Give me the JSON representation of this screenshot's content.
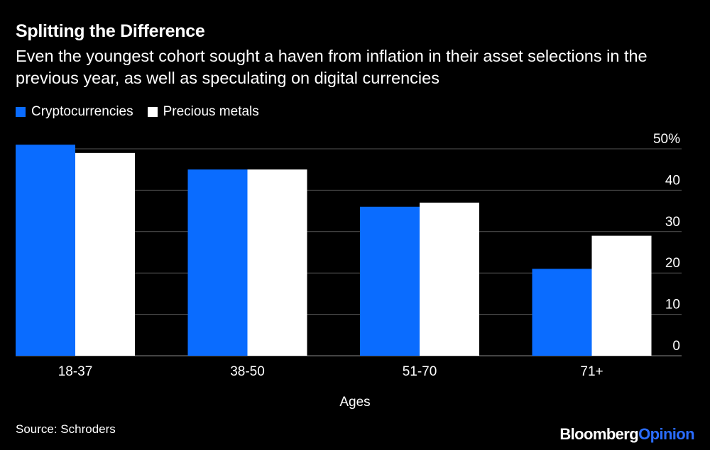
{
  "title": "Splitting the Difference",
  "subtitle": "Even the youngest cohort sought a haven from inflation in their asset selections in the previous year, as well as speculating on digital currencies",
  "source": "Source: Schroders",
  "brand": {
    "main": "Bloomberg",
    "accent": "Opinion"
  },
  "colors": {
    "crypto": "#0a6cff",
    "metals": "#ffffff",
    "grid": "#555555",
    "text": "#ffffff",
    "brand_accent": "#2a6cff"
  },
  "chart_data": {
    "type": "bar",
    "title": "Splitting the Difference",
    "xlabel": "Ages",
    "ylabel": "",
    "categories": [
      "18-37",
      "38-50",
      "51-70",
      "71+"
    ],
    "series": [
      {
        "name": "Cryptocurrencies",
        "color": "#0a6cff",
        "values": [
          51,
          45,
          36,
          21
        ]
      },
      {
        "name": "Precious metals",
        "color": "#ffffff",
        "values": [
          49,
          45,
          37,
          29
        ]
      }
    ],
    "ylim": [
      0,
      50
    ],
    "yticks": [
      0,
      10,
      20,
      30,
      40,
      50
    ],
    "ytick_labels": [
      "0",
      "10",
      "20",
      "30",
      "40",
      "50%"
    ],
    "yaxis_side": "right",
    "grid": true,
    "legend": "top-left"
  }
}
